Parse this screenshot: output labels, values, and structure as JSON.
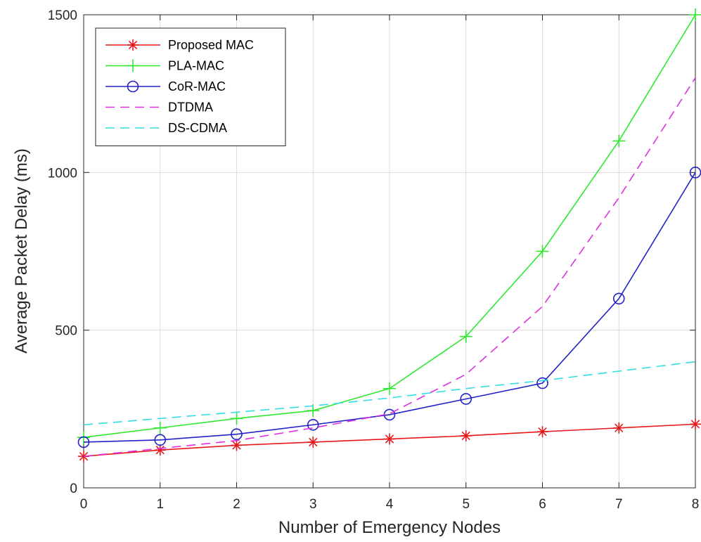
{
  "chart_data": {
    "type": "line",
    "xlabel": "Number of Emergency Nodes",
    "ylabel": "Average Packet Delay (ms)",
    "x": [
      0,
      1,
      2,
      3,
      4,
      5,
      6,
      7,
      8
    ],
    "xlim": [
      0,
      8
    ],
    "ylim": [
      0,
      1500
    ],
    "xticks": [
      0,
      1,
      2,
      3,
      4,
      5,
      6,
      7,
      8
    ],
    "yticks": [
      0,
      500,
      1000,
      1500
    ],
    "grid": true,
    "legend_position": "top-left",
    "series": [
      {
        "name": "Proposed MAC",
        "color": "#e8161b",
        "style": "solid",
        "marker": "asterisk",
        "values": [
          100,
          120,
          135,
          145,
          155,
          165,
          178,
          190,
          202
        ]
      },
      {
        "name": "PLA-MAC",
        "color": "#2ee82e",
        "style": "solid",
        "marker": "plus",
        "values": [
          160,
          190,
          220,
          245,
          315,
          480,
          750,
          1100,
          1500
        ]
      },
      {
        "name": "CoR-MAC",
        "color": "#2222c8",
        "style": "solid",
        "marker": "circle",
        "values": [
          145,
          152,
          170,
          200,
          232,
          282,
          332,
          600,
          1000
        ]
      },
      {
        "name": "DTDMA",
        "color": "#e02ee0",
        "style": "dashed",
        "marker": "none",
        "values": [
          100,
          125,
          150,
          190,
          235,
          360,
          575,
          920,
          1300
        ]
      },
      {
        "name": "DS-CDMA",
        "color": "#33dde0",
        "style": "dashed",
        "marker": "none",
        "values": [
          200,
          220,
          240,
          260,
          285,
          315,
          340,
          370,
          400
        ]
      }
    ]
  }
}
